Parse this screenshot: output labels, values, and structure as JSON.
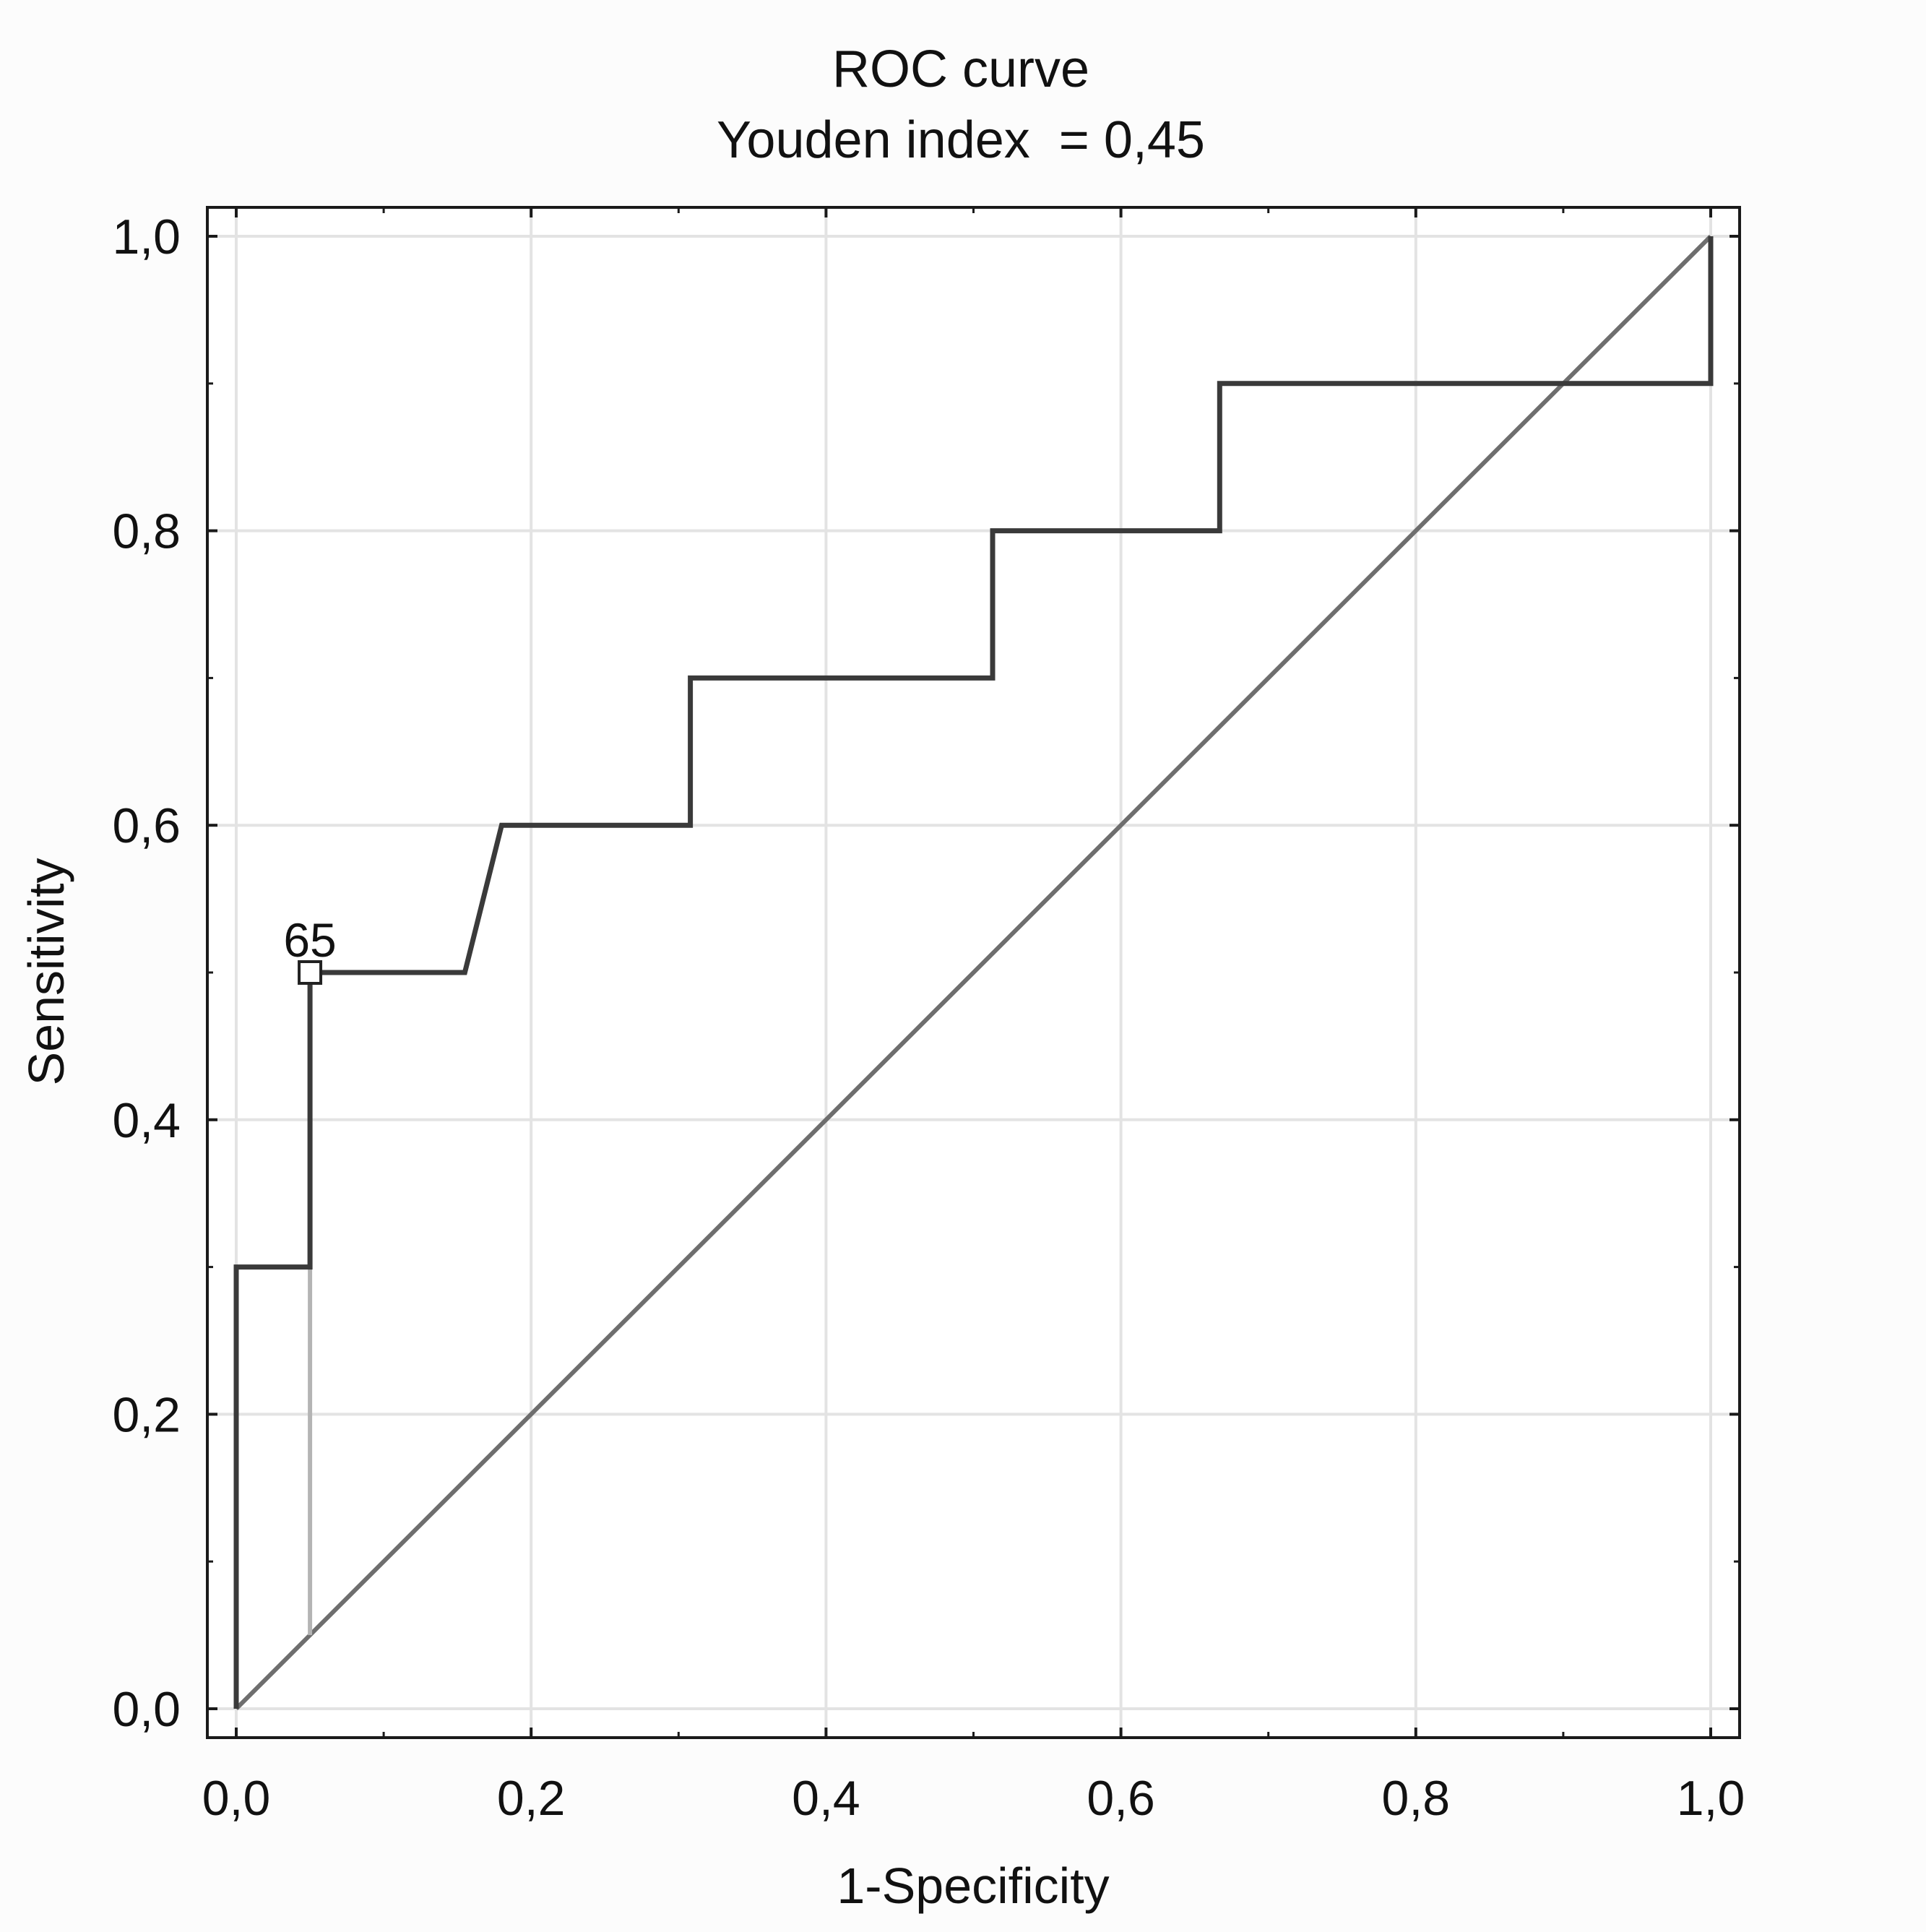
{
  "chart_data": {
    "type": "line",
    "title": "ROC curve",
    "subtitle": "Youden index  = 0,45",
    "xlabel": "1-Specificity",
    "ylabel": "Sensitivity",
    "xlim": [
      0,
      1
    ],
    "ylim": [
      0,
      1
    ],
    "grid": true,
    "x_ticks": [
      0,
      0.2,
      0.4,
      0.6,
      0.8,
      1.0
    ],
    "x_tick_labels": [
      "0,0",
      "0,2",
      "0,4",
      "0,6",
      "0,8",
      "1,0"
    ],
    "y_ticks": [
      0,
      0.2,
      0.4,
      0.6,
      0.8,
      1.0
    ],
    "y_tick_labels": [
      "0,0",
      "0,2",
      "0,4",
      "0,6",
      "0,8",
      "1,0"
    ],
    "minor_ticks": [
      0.1,
      0.3,
      0.5,
      0.7,
      0.9
    ],
    "series": [
      {
        "name": "ROC curve",
        "color": "#3a3a3a",
        "x": [
          0,
          0,
          0.05,
          0.05,
          0.155,
          0.18,
          0.308,
          0.308,
          0.513,
          0.513,
          0.667,
          0.667,
          1.0,
          1.0
        ],
        "y": [
          0,
          0.3,
          0.3,
          0.5,
          0.5,
          0.6,
          0.6,
          0.7,
          0.7,
          0.8,
          0.8,
          0.9,
          0.9,
          1.0
        ]
      },
      {
        "name": "Reference line",
        "color": "#6e6e6e",
        "x": [
          0,
          1
        ],
        "y": [
          0,
          1
        ]
      },
      {
        "name": "Youden index line",
        "color": "#b4b4b4",
        "x": [
          0.05,
          0.05
        ],
        "y": [
          0.05,
          0.5
        ]
      }
    ],
    "cutoff_point": {
      "label": "65",
      "x": 0.05,
      "y": 0.5
    }
  }
}
